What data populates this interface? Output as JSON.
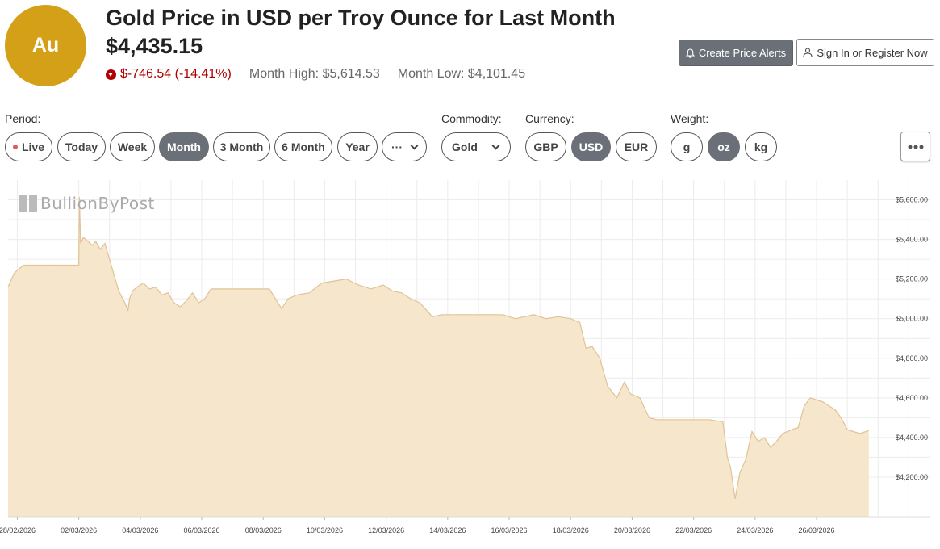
{
  "header": {
    "symbol": "Au",
    "title": "Gold Price in USD per Troy Ounce for Last Month",
    "price": "$4,435.15",
    "change": "$-746.54 (-14.41%)",
    "month_high": "Month High: $5,614.53",
    "month_low": "Month Low: $4,101.45",
    "create_alerts_label": "Create Price Alerts",
    "sign_in_label": "Sign In or Register Now"
  },
  "controls": {
    "period_label": "Period:",
    "periods": [
      "Live",
      "Today",
      "Week",
      "Month",
      "3 Month",
      "6 Month",
      "Year",
      "···"
    ],
    "active_period": "Month",
    "commodity_label": "Commodity:",
    "commodity_value": "Gold",
    "currency_label": "Currency:",
    "currencies": [
      "GBP",
      "USD",
      "EUR"
    ],
    "active_currency": "USD",
    "weight_label": "Weight:",
    "weights": [
      "g",
      "oz",
      "kg"
    ],
    "active_weight": "oz"
  },
  "watermark": "BullionByPost",
  "colors": {
    "accent": "#d4a017",
    "active": "#6b7078",
    "down": "#b00000",
    "area_fill": "#f5e6cc",
    "area_line": "#e0c396"
  },
  "chart_data": {
    "type": "area",
    "y_ticks": [
      4200,
      4400,
      4600,
      4800,
      5000,
      5200,
      5400,
      5600
    ],
    "y_tick_labels": [
      "$4,200.00",
      "$4,400.00",
      "$4,600.00",
      "$4,800.00",
      "$5,000.00",
      "$5,200.00",
      "$5,400.00",
      "$5,600.00"
    ],
    "ylim": [
      4000,
      5700
    ],
    "xlim": [
      -0.3,
      29.7
    ],
    "x_tick_labels": [
      "28/02/2026",
      "02/03/2026",
      "04/03/2026",
      "06/03/2026",
      "08/03/2026",
      "10/03/2026",
      "12/03/2026",
      "14/03/2026",
      "16/03/2026",
      "18/03/2026",
      "20/03/2026",
      "22/03/2026",
      "24/03/2026",
      "26/03/2026"
    ],
    "x_tick_days": [
      0,
      2,
      4,
      6,
      8,
      10,
      12,
      14,
      16,
      18,
      20,
      22,
      24,
      26
    ],
    "grid": true,
    "series": [
      {
        "x": [
          -0.3,
          -0.1,
          0.2,
          0.5,
          1.0,
          1.5,
          2.0,
          2.02,
          2.06,
          2.15,
          2.3,
          2.45,
          2.55,
          2.7,
          2.85,
          3.0,
          3.15,
          3.3,
          3.5,
          3.6,
          3.65,
          3.75,
          3.9,
          4.1,
          4.3,
          4.5,
          4.7,
          4.9,
          5.1,
          5.3,
          5.5,
          5.7,
          5.9,
          6.1,
          6.3,
          6.6,
          6.9,
          7.2,
          7.7,
          8.2,
          8.6,
          8.8,
          9.1,
          9.5,
          9.9,
          10.3,
          10.7,
          11.1,
          11.5,
          11.9,
          12.2,
          12.5,
          12.8,
          13.1,
          13.5,
          13.8,
          14.2,
          14.7,
          15.2,
          15.8,
          16.2,
          16.5,
          16.8,
          17.2,
          17.6,
          18.0,
          18.3,
          18.5,
          18.7,
          18.95,
          19.2,
          19.5,
          19.75,
          19.95,
          20.25,
          20.55,
          20.8,
          21.0,
          21.5,
          22.0,
          22.5,
          22.95,
          23.1,
          23.2,
          23.35,
          23.5,
          23.7,
          23.9,
          24.1,
          24.3,
          24.5,
          24.7,
          24.9,
          25.2,
          25.4,
          25.6,
          25.8,
          26.0,
          26.2,
          26.4,
          26.6,
          26.8,
          27.0,
          27.2,
          27.4,
          27.7
        ],
        "y": [
          5160,
          5230,
          5270,
          5270,
          5270,
          5270,
          5270,
          5614,
          5380,
          5410,
          5390,
          5370,
          5390,
          5350,
          5380,
          5300,
          5220,
          5140,
          5080,
          5040,
          5100,
          5140,
          5160,
          5180,
          5150,
          5160,
          5120,
          5130,
          5080,
          5060,
          5090,
          5130,
          5080,
          5100,
          5150,
          5150,
          5150,
          5150,
          5150,
          5150,
          5050,
          5100,
          5120,
          5130,
          5180,
          5190,
          5200,
          5170,
          5150,
          5170,
          5140,
          5130,
          5100,
          5080,
          5010,
          5020,
          5020,
          5020,
          5020,
          5020,
          5000,
          5010,
          5020,
          5000,
          5010,
          5000,
          4980,
          4850,
          4860,
          4800,
          4660,
          4600,
          4680,
          4620,
          4600,
          4500,
          4490,
          4490,
          4490,
          4490,
          4490,
          4480,
          4300,
          4250,
          4090,
          4220,
          4290,
          4430,
          4380,
          4400,
          4350,
          4380,
          4420,
          4440,
          4450,
          4560,
          4600,
          4590,
          4580,
          4560,
          4540,
          4500,
          4440,
          4430,
          4420,
          4435
        ]
      }
    ]
  }
}
